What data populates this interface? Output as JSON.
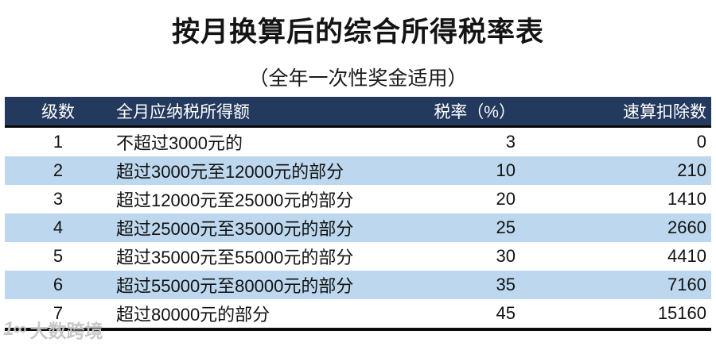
{
  "page": {
    "title": "按月换算后的综合所得税率表",
    "subtitle": "（全年一次性奖金适用）"
  },
  "table": {
    "columns": [
      "级数",
      "全月应纳税所得额",
      "税率（%）",
      "速算扣除数"
    ],
    "rows": [
      {
        "level": "1",
        "income": "不超过3000元的",
        "rate": "3",
        "deduction": "0"
      },
      {
        "level": "2",
        "income": "超过3000元至12000元的部分",
        "rate": "10",
        "deduction": "210"
      },
      {
        "level": "3",
        "income": "超过12000元至25000元的部分",
        "rate": "20",
        "deduction": "1410"
      },
      {
        "level": "4",
        "income": "超过25000元至35000元的部分",
        "rate": "25",
        "deduction": "2660"
      },
      {
        "level": "5",
        "income": "超过35000元至55000元的部分",
        "rate": "30",
        "deduction": "4410"
      },
      {
        "level": "6",
        "income": "超过55000元至80000元的部分",
        "rate": "35",
        "deduction": "7160"
      },
      {
        "level": "7",
        "income": "超过80000元的部分",
        "rate": "45",
        "deduction": "15160"
      }
    ]
  },
  "watermark": {
    "logo": "1∞",
    "text": "大数跨境"
  },
  "colors": {
    "header_bg": "#24395E",
    "header_text": "#FFFFFF",
    "row_alt_bg": "#BDD8EE",
    "border": "#0A0A0A",
    "watermark_text": "#C4C4C4"
  }
}
